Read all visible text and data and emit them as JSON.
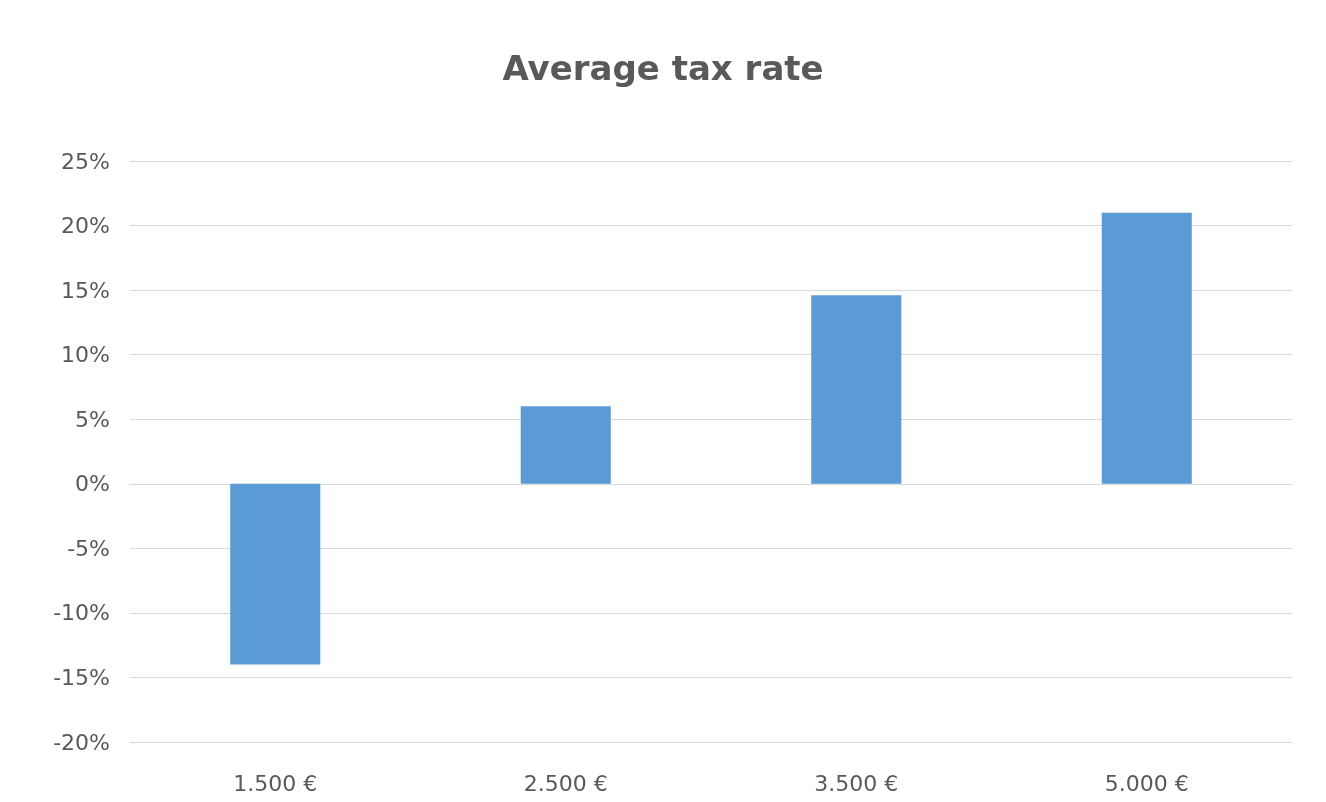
{
  "chart_data": {
    "type": "bar",
    "title": "Average tax rate",
    "categories": [
      "1.500 €",
      "2.500 €",
      "3.500 €",
      "5.000 €"
    ],
    "values": [
      -14.0,
      6.0,
      14.6,
      21.0
    ],
    "color": "#5b9bd5",
    "ylim": [
      -20,
      25
    ],
    "yticks": [
      {
        "value": -20,
        "label": "-20%"
      },
      {
        "value": -15,
        "label": "-15%"
      },
      {
        "value": -10,
        "label": "-10%"
      },
      {
        "value": -5,
        "label": "-5%"
      },
      {
        "value": 0,
        "label": "0%"
      },
      {
        "value": 5,
        "label": "5%"
      },
      {
        "value": 10,
        "label": "10%"
      },
      {
        "value": 15,
        "label": "15%"
      },
      {
        "value": 20,
        "label": "20%"
      },
      {
        "value": 25,
        "label": "25%"
      }
    ],
    "grid": true
  }
}
